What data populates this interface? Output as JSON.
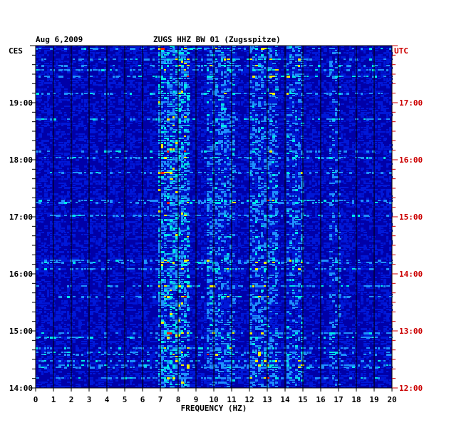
{
  "chart_data": {
    "type": "heatmap",
    "date": "Aug 6,2009",
    "title": "ZUGS HHZ BW 01 (Zugsspitze)",
    "left_axis_label": "CES",
    "right_axis_label": "UTC",
    "xlabel": "FREQUENCY (HZ)",
    "xlim": [
      0,
      20
    ],
    "x_ticks": [
      "0",
      "1",
      "2",
      "3",
      "4",
      "5",
      "6",
      "7",
      "8",
      "9",
      "10",
      "11",
      "12",
      "13",
      "14",
      "15",
      "16",
      "17",
      "18",
      "19",
      "20"
    ],
    "left_time_ticks": [
      {
        "label": "19:00",
        "hours_from_bottom": 5
      },
      {
        "label": "18:00",
        "hours_from_bottom": 4
      },
      {
        "label": "17:00",
        "hours_from_bottom": 3
      },
      {
        "label": "16:00",
        "hours_from_bottom": 2
      },
      {
        "label": "15:00",
        "hours_from_bottom": 1
      },
      {
        "label": "14:00",
        "hours_from_bottom": 0
      }
    ],
    "right_time_ticks": [
      {
        "label": "17:00",
        "hours_from_bottom": 5
      },
      {
        "label": "16:00",
        "hours_from_bottom": 4
      },
      {
        "label": "15:00",
        "hours_from_bottom": 3
      },
      {
        "label": "14:00",
        "hours_from_bottom": 2
      },
      {
        "label": "13:00",
        "hours_from_bottom": 1
      },
      {
        "label": "12:00",
        "hours_from_bottom": 0
      }
    ],
    "hours_span": 6,
    "colors": {
      "background": "#0000a8",
      "low": "#0018d8",
      "mid": "#1e90ff",
      "high": "#00e8e8",
      "peak": "#f0f000",
      "max": "#ff2000",
      "axis_left_text": "#000000",
      "axis_right_text": "#cc0000"
    },
    "energy_bands_hz": [
      {
        "f_min": 6.8,
        "f_max": 8.6,
        "level": "high"
      },
      {
        "f_min": 9.6,
        "f_max": 11.2,
        "level": "mid"
      },
      {
        "f_min": 12.0,
        "f_max": 13.6,
        "level": "mid"
      },
      {
        "f_min": 14.0,
        "f_max": 15.0,
        "level": "mid"
      },
      {
        "f_min": 16.4,
        "f_max": 17.0,
        "level": "low"
      }
    ]
  }
}
